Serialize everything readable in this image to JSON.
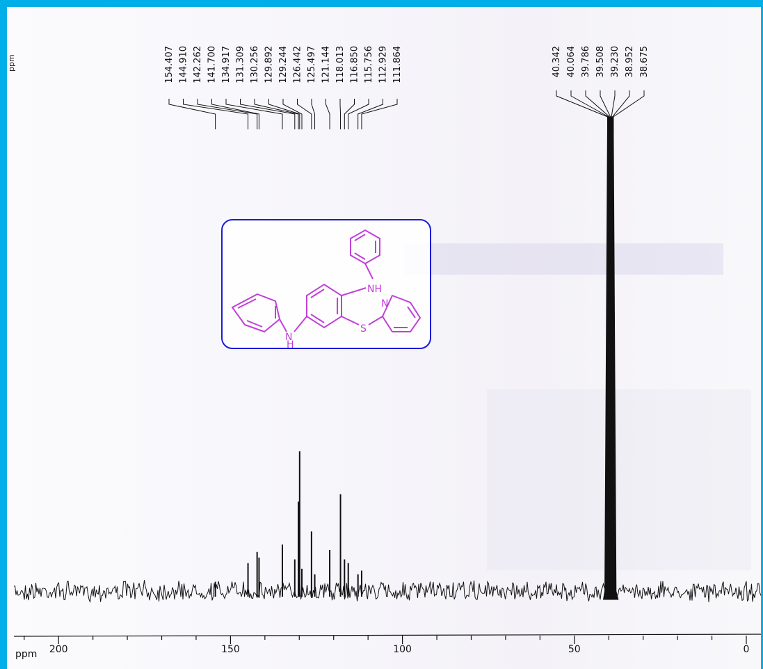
{
  "chart_data": {
    "type": "line",
    "title": "",
    "xlabel": "ppm",
    "ylabel": "",
    "x_axis_reversed": true,
    "xlim": [
      222,
      -3
    ],
    "ticks": [
      {
        "value": 200,
        "label": "200"
      },
      {
        "value": 150,
        "label": "150"
      },
      {
        "value": 100,
        "label": "100"
      },
      {
        "value": 50,
        "label": "50"
      },
      {
        "value": 0,
        "label": "0"
      }
    ],
    "peaks_aromatic": [
      {
        "label": "154.407",
        "ppm": 154.407,
        "height": 0.05
      },
      {
        "label": "144.910",
        "ppm": 144.91,
        "height": 0.15
      },
      {
        "label": "142.262",
        "ppm": 142.262,
        "height": 0.21
      },
      {
        "label": "141.700",
        "ppm": 141.7,
        "height": 0.18
      },
      {
        "label": "134.917",
        "ppm": 134.917,
        "height": 0.25
      },
      {
        "label": "131.309",
        "ppm": 131.309,
        "height": 0.17
      },
      {
        "label": "130.256",
        "ppm": 130.256,
        "height": 0.48
      },
      {
        "label": "129.892",
        "ppm": 129.892,
        "height": 0.75
      },
      {
        "label": "129.244",
        "ppm": 129.244,
        "height": 0.12
      },
      {
        "label": "126.442",
        "ppm": 126.442,
        "height": 0.32
      },
      {
        "label": "125.497",
        "ppm": 125.497,
        "height": 0.09
      },
      {
        "label": "121.144",
        "ppm": 121.144,
        "height": 0.22
      },
      {
        "label": "118.013",
        "ppm": 118.013,
        "height": 0.52
      },
      {
        "label": "116.850",
        "ppm": 116.85,
        "height": 0.17
      },
      {
        "label": "115.756",
        "ppm": 115.756,
        "height": 0.15
      },
      {
        "label": "112.929",
        "ppm": 112.929,
        "height": 0.09
      },
      {
        "label": "111.864",
        "ppm": 111.864,
        "height": 0.11
      }
    ],
    "peaks_solvent": [
      {
        "label": "40.342",
        "ppm": 40.342,
        "height": 1.0
      },
      {
        "label": "40.064",
        "ppm": 40.064,
        "height": 1.0
      },
      {
        "label": "39.786",
        "ppm": 39.786,
        "height": 1.0
      },
      {
        "label": "39.508",
        "ppm": 39.508,
        "height": 1.0
      },
      {
        "label": "39.230",
        "ppm": 39.23,
        "height": 1.0
      },
      {
        "label": "38.952",
        "ppm": 38.952,
        "height": 1.0
      },
      {
        "label": "38.675",
        "ppm": 38.675,
        "height": 1.0
      }
    ],
    "stray_header": "ppm"
  },
  "structure": {
    "atom_labels": [
      "NH",
      "N",
      "S",
      "N",
      "H"
    ],
    "border_color": "#1a1ad6",
    "bond_color": "#c040d8"
  },
  "colors": {
    "frame": "#00aee8",
    "spectrum": "#111111"
  }
}
